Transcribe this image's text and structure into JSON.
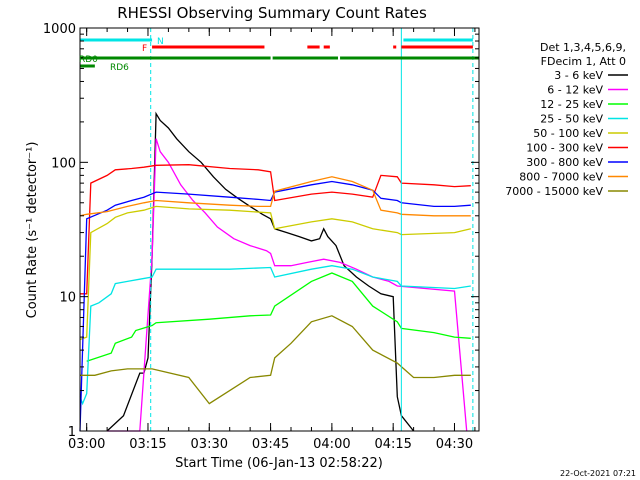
{
  "chart_data": {
    "type": "line",
    "title": "RHESSI Observing Summary Count Rates",
    "xlabel": "Start Time (06-Jan-13 02:58:22)",
    "ylabel": "Count Rate (s⁻¹ detector⁻¹)",
    "y_scale": "log",
    "ylim": [
      1,
      1000
    ],
    "xlim": [
      "02:58:22",
      "04:36:00"
    ],
    "x_ticks": [
      "03:00",
      "03:15",
      "03:30",
      "03:45",
      "04:00",
      "04:15",
      "04:30"
    ],
    "y_ticks": [
      "1",
      "10",
      "100",
      "1000"
    ],
    "timestamp": "22-Oct-2021 07:21",
    "legend": {
      "header": [
        "Det 1,3,4,5,6,9,",
        "FDecim 1, Att 0"
      ],
      "placement": "right"
    },
    "flags": [
      {
        "label": "N",
        "color": "#00e5e5",
        "segments": [
          [
            "02:58:22",
            "03:16:00"
          ],
          [
            "04:17:30",
            "04:34:30"
          ]
        ]
      },
      {
        "label": "F",
        "color": "#ff0000",
        "segments": [
          [
            "03:16:00",
            "03:43:30"
          ],
          [
            "03:54:00",
            "03:57:00"
          ],
          [
            "03:58:00",
            "03:59:30"
          ],
          [
            "04:15:00",
            "04:15:45"
          ],
          [
            "04:17:00",
            "04:34:30"
          ]
        ]
      },
      {
        "label": "RD0",
        "color": "#008800",
        "segments": [
          [
            "02:58:22",
            "03:45:00"
          ],
          [
            "03:45:30",
            "04:01:30"
          ],
          [
            "04:02:00",
            "04:36:00"
          ]
        ]
      },
      {
        "label": "RD6",
        "color": "#008800",
        "segments": [
          [
            "02:58:22",
            "03:02:00"
          ]
        ]
      }
    ],
    "vlines": [
      {
        "time": "03:15:40",
        "color": "#00e5e5",
        "style": "dashed"
      },
      {
        "time": "04:17:00",
        "color": "#00e5e5",
        "style": "solid"
      },
      {
        "time": "04:34:30",
        "color": "#00e5e5",
        "style": "dashed"
      }
    ],
    "series": [
      {
        "name": "3 - 6 keV",
        "color": "#000000",
        "points": [
          [
            "03:05",
            1
          ],
          [
            "03:09",
            1.3
          ],
          [
            "03:13",
            2.7
          ],
          [
            "03:14",
            2.7
          ],
          [
            "03:15",
            3.5
          ],
          [
            "03:16",
            20
          ],
          [
            "03:17",
            230
          ],
          [
            "03:18",
            205
          ],
          [
            "03:20",
            180
          ],
          [
            "03:22",
            150
          ],
          [
            "03:25",
            120
          ],
          [
            "03:28",
            100
          ],
          [
            "03:31",
            78
          ],
          [
            "03:34",
            63
          ],
          [
            "03:37",
            54
          ],
          [
            "03:40",
            47
          ],
          [
            "03:43",
            41
          ],
          [
            "03:45",
            38
          ],
          [
            "03:46",
            32
          ],
          [
            "03:49",
            30
          ],
          [
            "03:52",
            28
          ],
          [
            "03:55",
            26
          ],
          [
            "03:57",
            27
          ],
          [
            "03:58",
            32
          ],
          [
            "03:59",
            28
          ],
          [
            "04:01",
            24
          ],
          [
            "04:03",
            17
          ],
          [
            "04:06",
            14
          ],
          [
            "04:09",
            12
          ],
          [
            "04:12",
            10.5
          ],
          [
            "04:15",
            10
          ],
          [
            "04:16",
            1.8
          ],
          [
            "04:17",
            1.3
          ],
          [
            "04:20",
            1
          ]
        ]
      },
      {
        "name": "6 - 12 keV",
        "color": "#ff00ff",
        "points": [
          [
            "03:05",
            1
          ],
          [
            "03:13",
            1
          ],
          [
            "03:16",
            20
          ],
          [
            "03:17",
            150
          ],
          [
            "03:18",
            120
          ],
          [
            "03:20",
            100
          ],
          [
            "03:23",
            68
          ],
          [
            "03:26",
            52
          ],
          [
            "03:29",
            42
          ],
          [
            "03:32",
            33
          ],
          [
            "03:36",
            27
          ],
          [
            "03:40",
            24
          ],
          [
            "03:44",
            22
          ],
          [
            "03:45",
            21
          ],
          [
            "03:46",
            17
          ],
          [
            "03:50",
            17
          ],
          [
            "03:54",
            18
          ],
          [
            "03:58",
            19
          ],
          [
            "04:02",
            18
          ],
          [
            "04:06",
            16
          ],
          [
            "04:10",
            14
          ],
          [
            "04:14",
            13
          ],
          [
            "04:16",
            12
          ],
          [
            "04:30",
            11
          ],
          [
            "04:33",
            1
          ]
        ]
      },
      {
        "name": "12 - 25 keV",
        "color": "#00ff00",
        "points": [
          [
            "03:00",
            3.3
          ],
          [
            "03:06",
            3.8
          ],
          [
            "03:07",
            4.5
          ],
          [
            "03:11",
            5
          ],
          [
            "03:12",
            5.6
          ],
          [
            "03:16",
            6.1
          ],
          [
            "03:17",
            6.4
          ],
          [
            "03:30",
            6.8
          ],
          [
            "03:40",
            7.2
          ],
          [
            "03:45",
            7.3
          ],
          [
            "03:46",
            8.5
          ],
          [
            "03:55",
            13
          ],
          [
            "04:00",
            15
          ],
          [
            "04:05",
            13
          ],
          [
            "04:10",
            8.5
          ],
          [
            "04:16",
            6.5
          ],
          [
            "04:17",
            5.8
          ],
          [
            "04:25",
            5.4
          ],
          [
            "04:30",
            5
          ],
          [
            "04:34",
            4.9
          ]
        ]
      },
      {
        "name": "25 - 50 keV",
        "color": "#00e5e5",
        "points": [
          [
            "02:58:22",
            1.8
          ],
          [
            "02:59",
            1.6
          ],
          [
            "03:00",
            1.9
          ],
          [
            "03:01",
            8.5
          ],
          [
            "03:03",
            9
          ],
          [
            "03:06",
            10.5
          ],
          [
            "03:07",
            12.5
          ],
          [
            "03:10",
            13
          ],
          [
            "03:13",
            13.5
          ],
          [
            "03:16",
            14
          ],
          [
            "03:17",
            16
          ],
          [
            "03:25",
            16
          ],
          [
            "03:35",
            16
          ],
          [
            "03:45",
            16.5
          ],
          [
            "03:46",
            14
          ],
          [
            "03:55",
            16
          ],
          [
            "04:00",
            17
          ],
          [
            "04:05",
            16
          ],
          [
            "04:10",
            14
          ],
          [
            "04:16",
            13
          ],
          [
            "04:17",
            12
          ],
          [
            "04:30",
            11.5
          ],
          [
            "04:34",
            12
          ]
        ]
      },
      {
        "name": "50 - 100 keV",
        "color": "#cccc00",
        "points": [
          [
            "02:58:22",
            4.8
          ],
          [
            "03:00",
            5
          ],
          [
            "03:01",
            30
          ],
          [
            "03:05",
            35
          ],
          [
            "03:07",
            39
          ],
          [
            "03:10",
            42
          ],
          [
            "03:14",
            44
          ],
          [
            "03:17",
            47
          ],
          [
            "03:25",
            45
          ],
          [
            "03:35",
            44
          ],
          [
            "03:45",
            42
          ],
          [
            "03:46",
            32
          ],
          [
            "03:55",
            36
          ],
          [
            "04:00",
            38
          ],
          [
            "04:05",
            36
          ],
          [
            "04:10",
            32
          ],
          [
            "04:16",
            30
          ],
          [
            "04:17",
            29
          ],
          [
            "04:30",
            30
          ],
          [
            "04:34",
            32
          ]
        ]
      },
      {
        "name": "100 - 300 keV",
        "color": "#ff0000",
        "points": [
          [
            "02:58:22",
            10.5
          ],
          [
            "03:00",
            10.5
          ],
          [
            "03:01",
            70
          ],
          [
            "03:05",
            80
          ],
          [
            "03:07",
            88
          ],
          [
            "03:11",
            90
          ],
          [
            "03:14",
            92
          ],
          [
            "03:17",
            95
          ],
          [
            "03:25",
            96
          ],
          [
            "03:35",
            90
          ],
          [
            "03:42",
            88
          ],
          [
            "03:45",
            85
          ],
          [
            "03:46",
            52
          ],
          [
            "03:55",
            58
          ],
          [
            "04:00",
            60
          ],
          [
            "04:05",
            58
          ],
          [
            "04:10",
            55
          ],
          [
            "04:12",
            80
          ],
          [
            "04:16",
            78
          ],
          [
            "04:17",
            70
          ],
          [
            "04:25",
            68
          ],
          [
            "04:30",
            66
          ],
          [
            "04:34",
            67
          ]
        ]
      },
      {
        "name": "300 - 800 keV",
        "color": "#0000ff",
        "points": [
          [
            "02:58:22",
            1
          ],
          [
            "03:00",
            38
          ],
          [
            "03:05",
            44
          ],
          [
            "03:07",
            48
          ],
          [
            "03:11",
            52
          ],
          [
            "03:14",
            55
          ],
          [
            "03:17",
            60
          ],
          [
            "03:25",
            58
          ],
          [
            "03:35",
            55
          ],
          [
            "03:42",
            53
          ],
          [
            "03:45",
            52
          ],
          [
            "03:46",
            60
          ],
          [
            "03:55",
            68
          ],
          [
            "04:00",
            72
          ],
          [
            "04:05",
            68
          ],
          [
            "04:10",
            62
          ],
          [
            "04:12",
            54
          ],
          [
            "04:16",
            52
          ],
          [
            "04:17",
            50
          ],
          [
            "04:25",
            47
          ],
          [
            "04:30",
            47
          ],
          [
            "04:34",
            48
          ]
        ]
      },
      {
        "name": "800 - 7000 keV",
        "color": "#ff8800",
        "points": [
          [
            "02:58:22",
            40
          ],
          [
            "03:00",
            41
          ],
          [
            "03:05",
            43
          ],
          [
            "03:10",
            47
          ],
          [
            "03:14",
            50
          ],
          [
            "03:17",
            52
          ],
          [
            "03:25",
            50
          ],
          [
            "03:35",
            48
          ],
          [
            "03:42",
            47
          ],
          [
            "03:45",
            47
          ],
          [
            "03:46",
            61
          ],
          [
            "03:55",
            72
          ],
          [
            "04:00",
            78
          ],
          [
            "04:05",
            72
          ],
          [
            "04:10",
            62
          ],
          [
            "04:12",
            44
          ],
          [
            "04:16",
            42
          ],
          [
            "04:17",
            41
          ],
          [
            "04:25",
            40
          ],
          [
            "04:30",
            40
          ],
          [
            "04:34",
            40
          ]
        ]
      },
      {
        "name": "7000 - 15000 keV",
        "color": "#888800",
        "points": [
          [
            "02:58:22",
            2.6
          ],
          [
            "03:02",
            2.6
          ],
          [
            "03:06",
            2.8
          ],
          [
            "03:10",
            2.9
          ],
          [
            "03:16",
            2.9
          ],
          [
            "03:25",
            2.5
          ],
          [
            "03:30",
            1.6
          ],
          [
            "03:35",
            2
          ],
          [
            "03:40",
            2.5
          ],
          [
            "03:45",
            2.6
          ],
          [
            "03:46",
            3.5
          ],
          [
            "03:50",
            4.5
          ],
          [
            "03:55",
            6.5
          ],
          [
            "04:00",
            7.2
          ],
          [
            "04:05",
            6
          ],
          [
            "04:10",
            4
          ],
          [
            "04:16",
            3.2
          ],
          [
            "04:20",
            2.5
          ],
          [
            "04:25",
            2.5
          ],
          [
            "04:30",
            2.6
          ],
          [
            "04:34",
            2.6
          ]
        ]
      }
    ]
  }
}
